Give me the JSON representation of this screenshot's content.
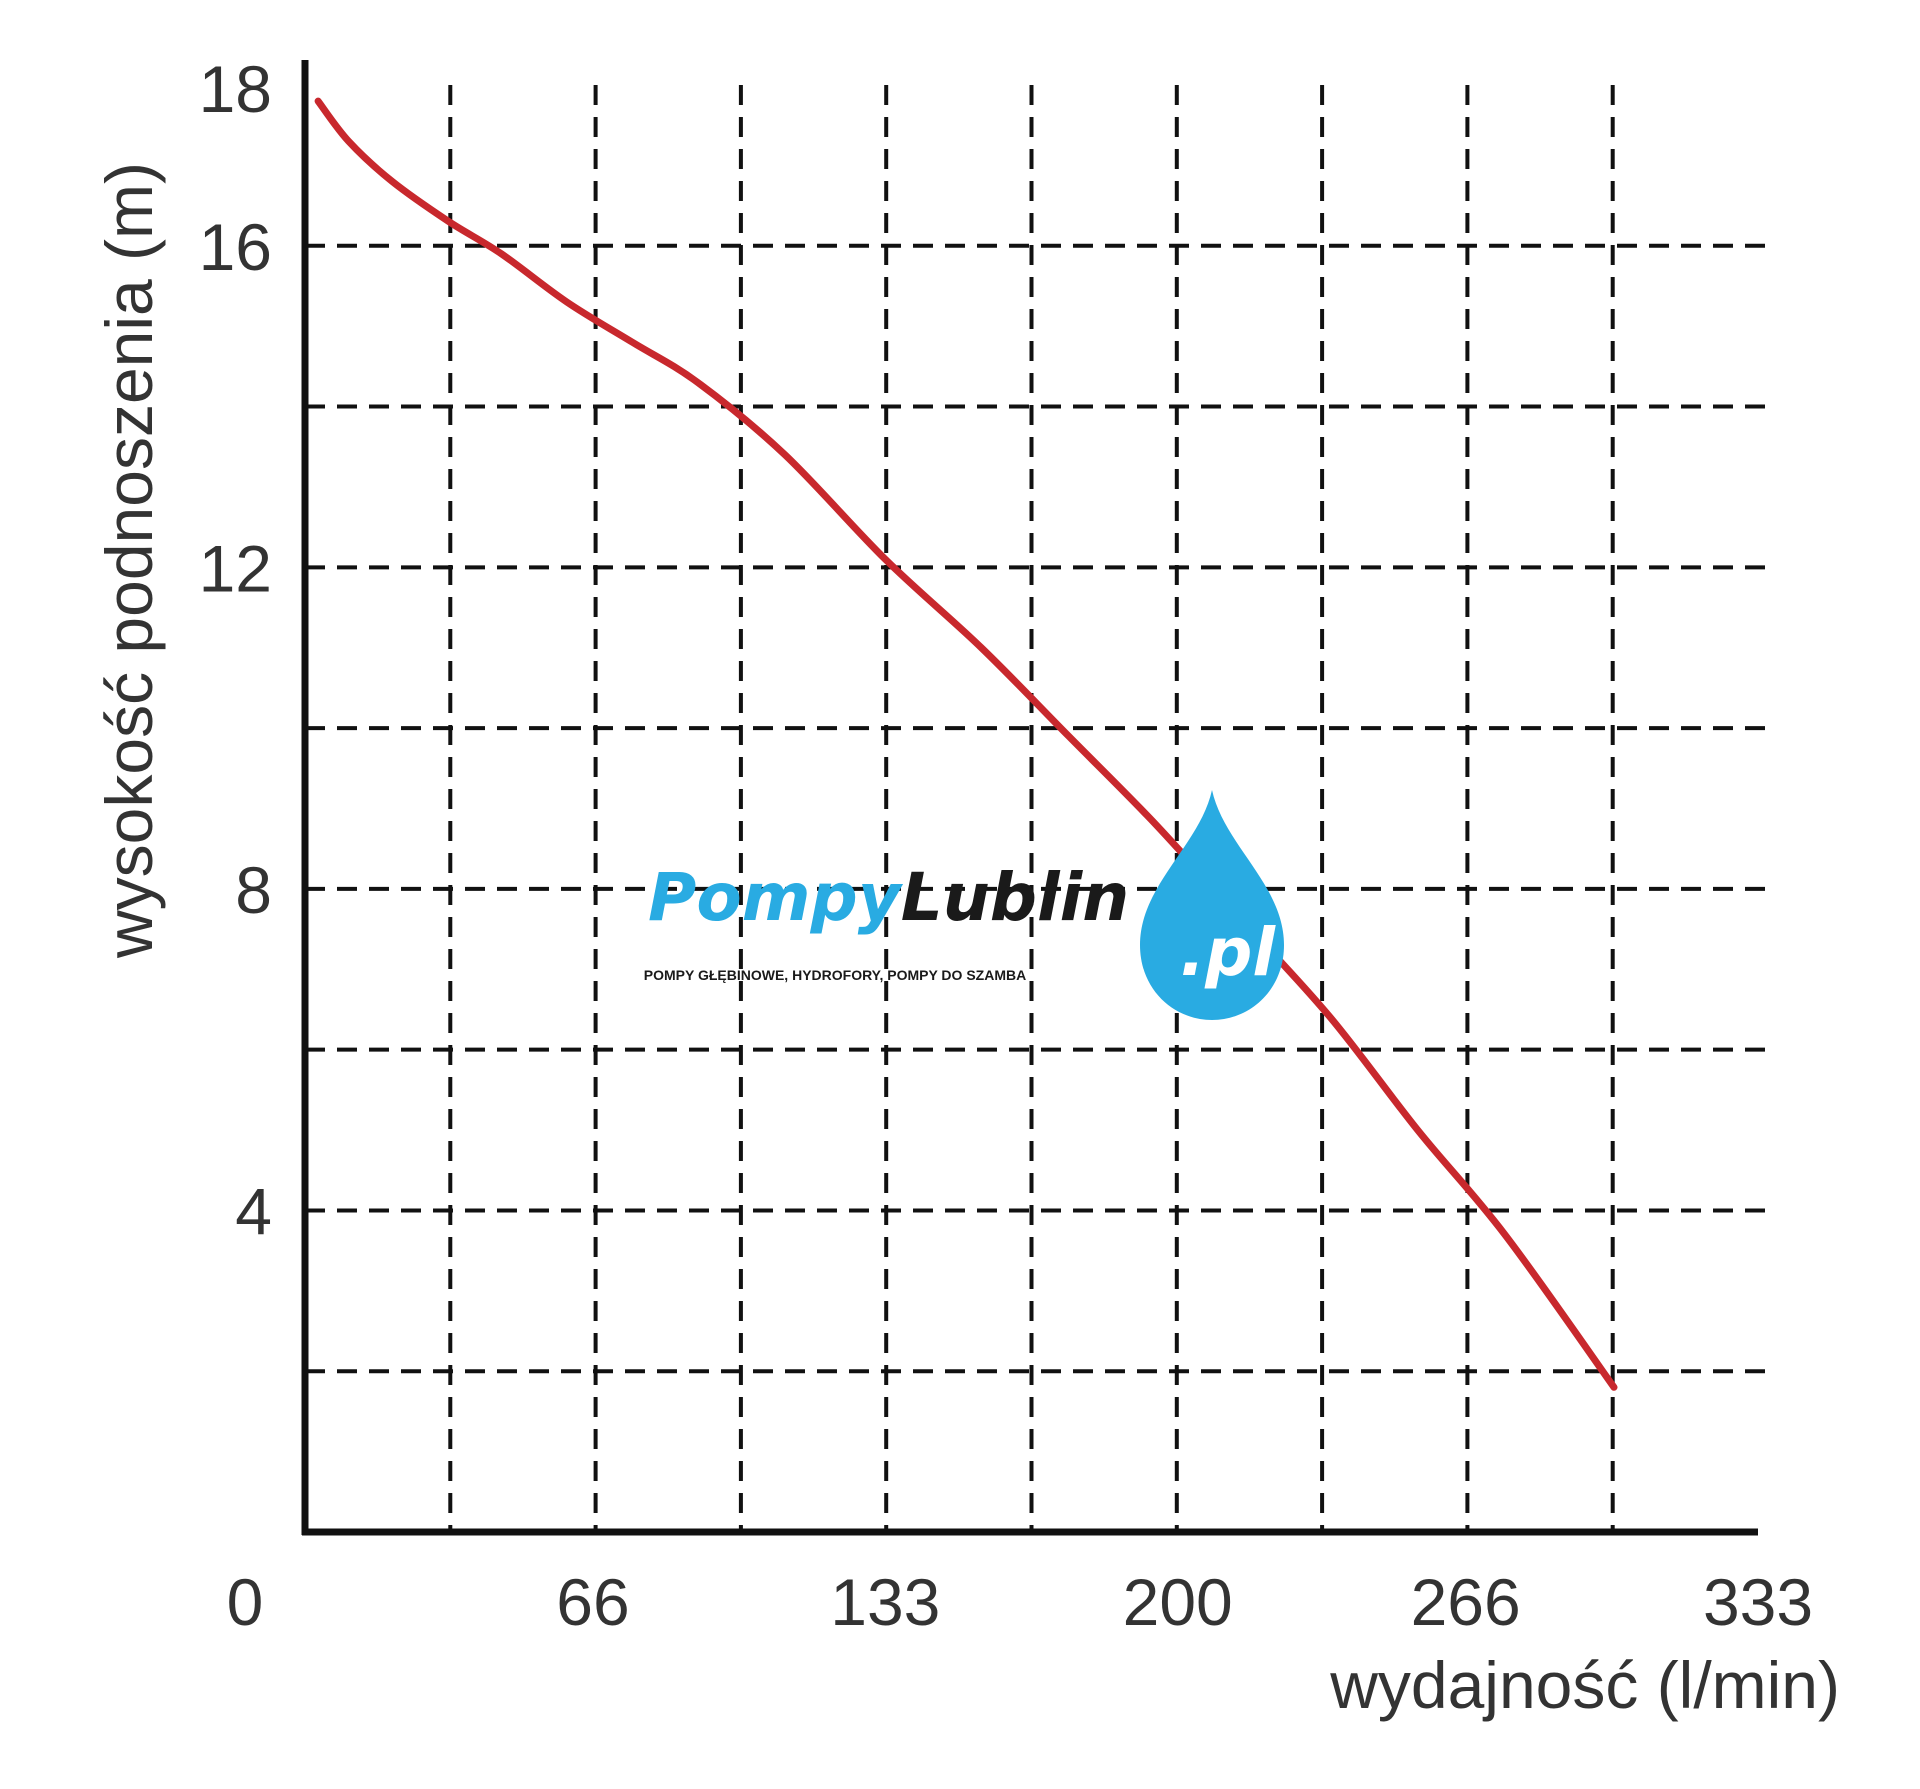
{
  "chart_data": {
    "type": "line",
    "xlabel": "wydajność (l/min)",
    "ylabel": "wysokość podnoszenia (m)",
    "x_ticks": [
      "0",
      "66",
      "133",
      "200",
      "266",
      "333"
    ],
    "y_ticks": [
      "4",
      "8",
      "12",
      "16",
      "18"
    ],
    "xlim": [
      0,
      333
    ],
    "ylim": [
      0,
      18
    ],
    "grid": true,
    "series": [
      {
        "color": "#c8282d",
        "x": [
          3,
          10,
          20,
          33,
          45,
          60,
          75,
          90,
          110,
          133,
          155,
          175,
          195,
          215,
          235,
          255,
          275,
          300
        ],
        "y": [
          17.8,
          17.3,
          16.8,
          16.3,
          15.9,
          15.3,
          14.8,
          14.3,
          13.4,
          12.1,
          11.0,
          9.9,
          8.8,
          7.6,
          6.4,
          5.0,
          3.7,
          1.8
        ]
      }
    ]
  },
  "watermark": {
    "brand_part1": "Pompy",
    "brand_part2": "Lublin",
    "domain": ".pl",
    "tagline": "POMPY GŁĘBINOWE, HYDROFORY, POMPY DO SZAMBA",
    "color_part1": "#29abe2",
    "color_part2": "#1a1a1a",
    "drop_color": "#29abe2"
  }
}
